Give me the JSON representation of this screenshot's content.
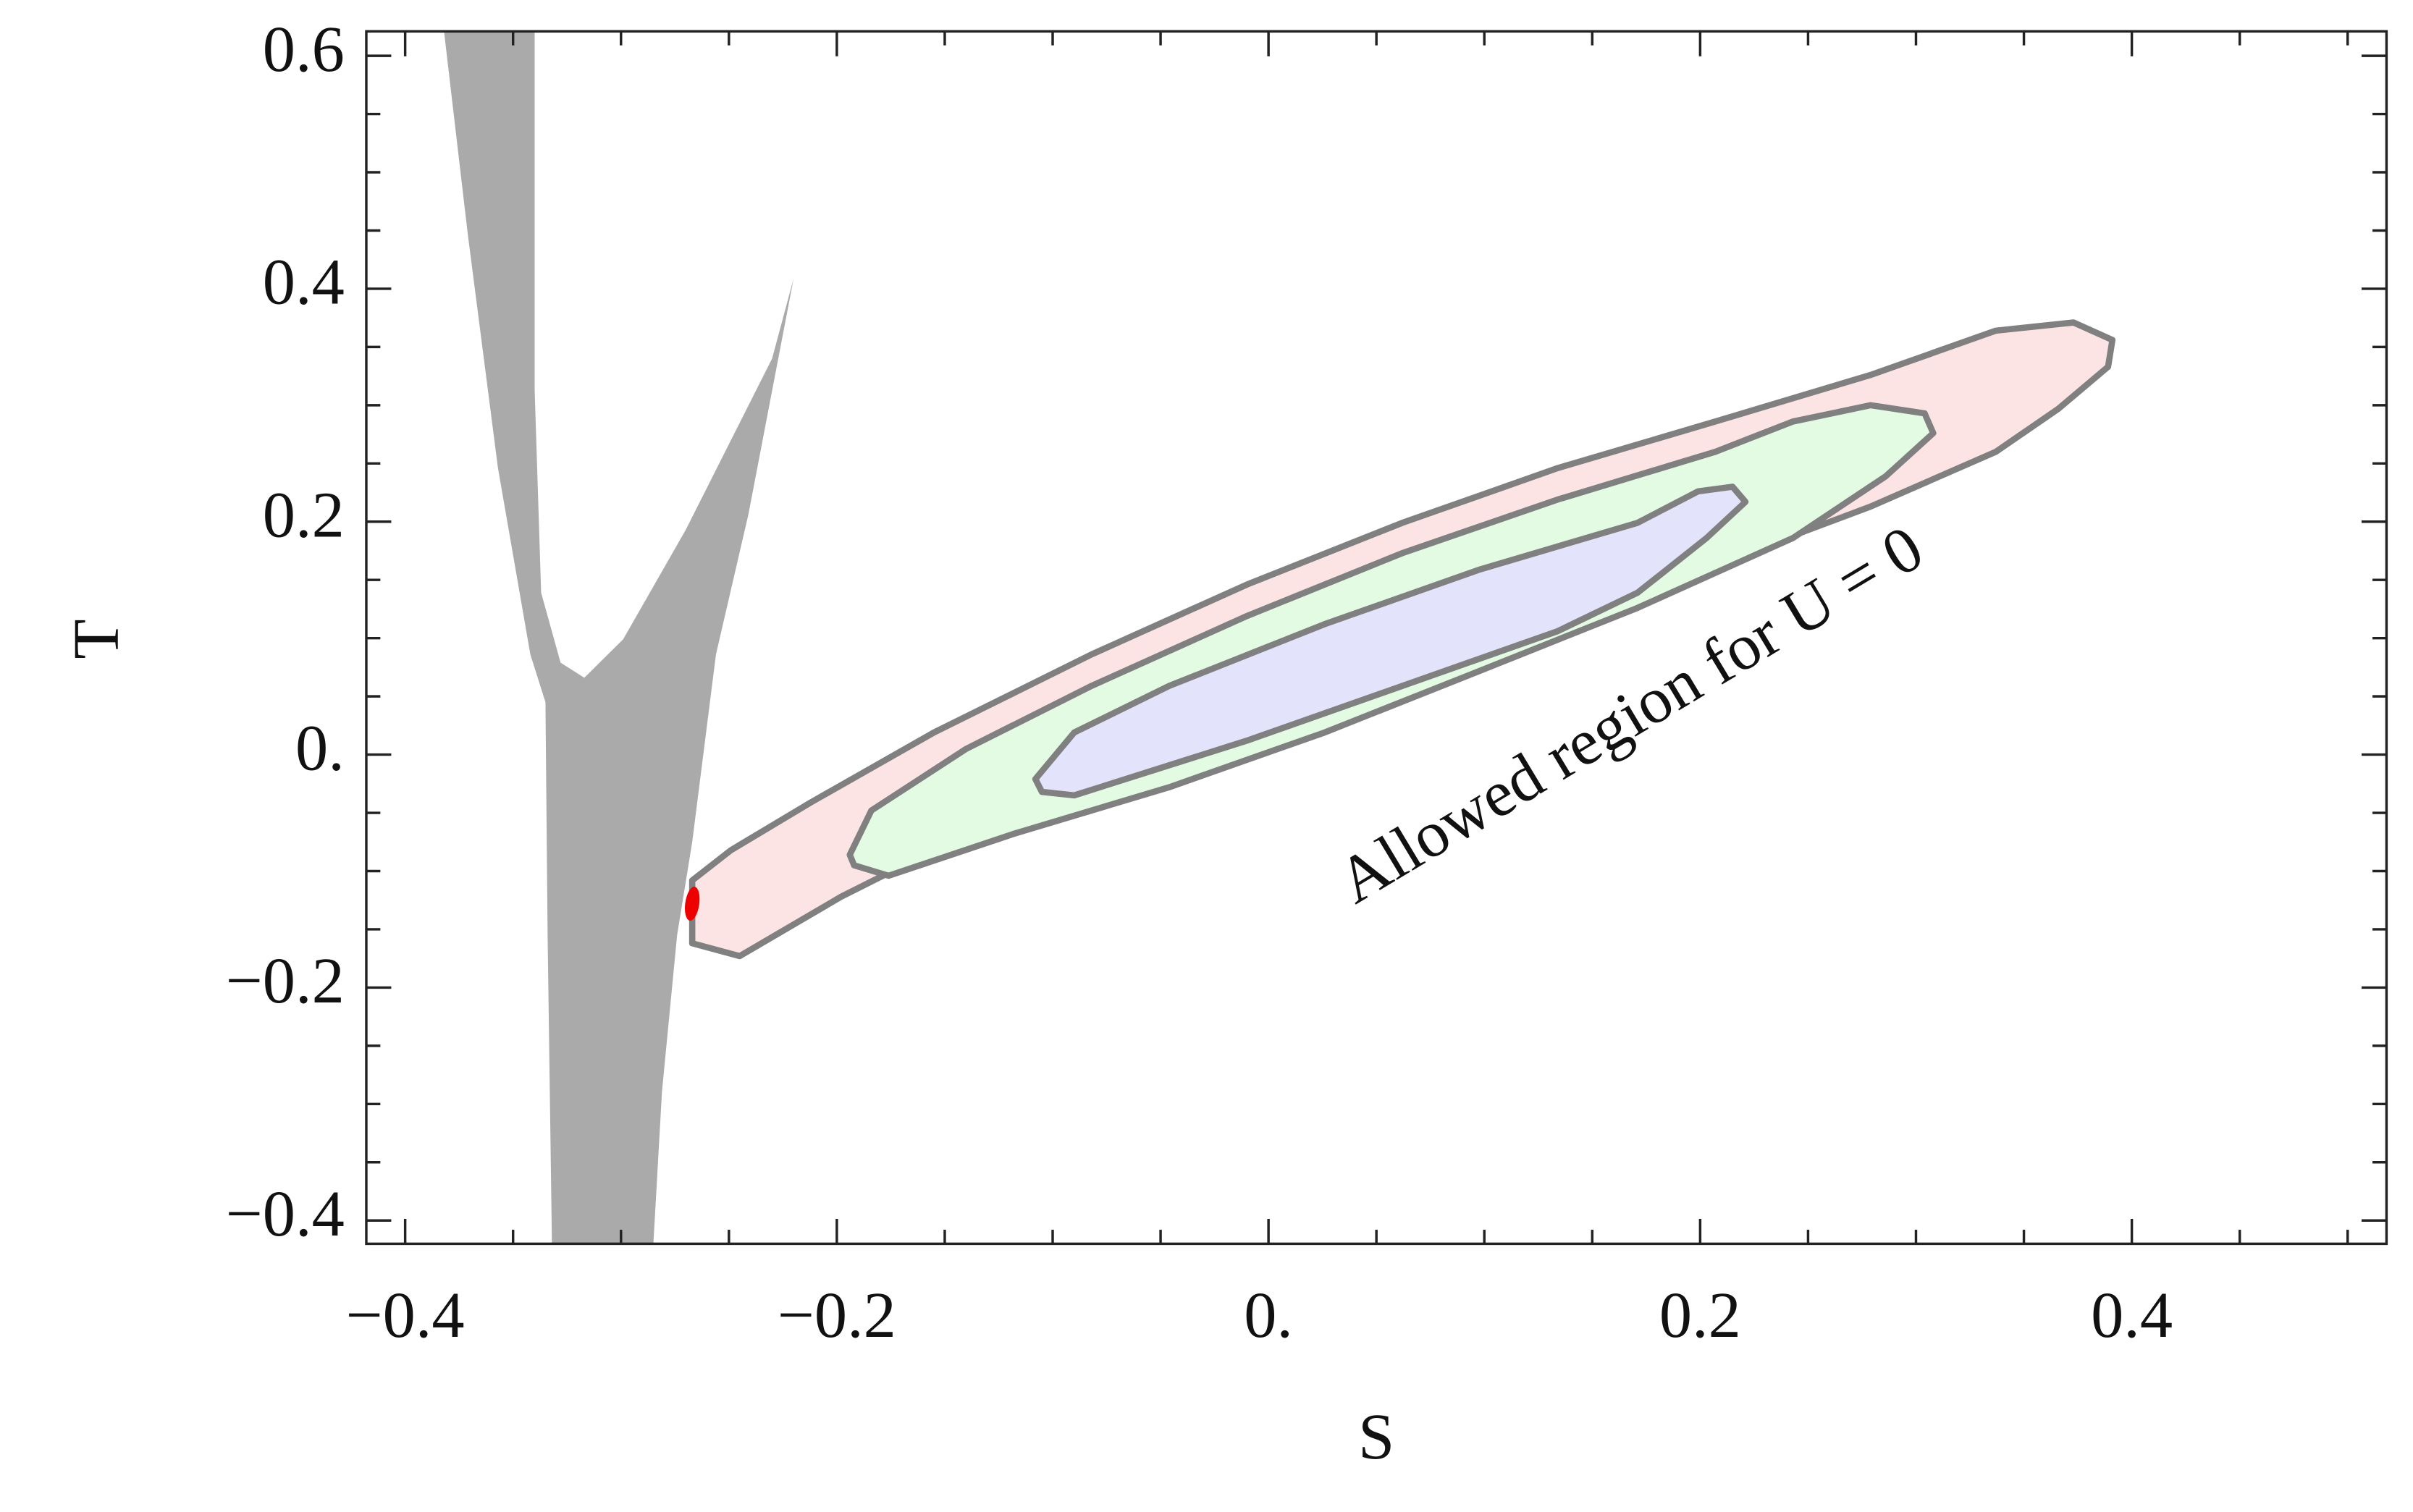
{
  "chart_data": {
    "type": "region",
    "xlabel": "S",
    "ylabel": "T",
    "annotation": "Allowed region for U = 0",
    "xlim": [
      -0.418,
      0.518
    ],
    "ylim": [
      -0.42,
      0.621
    ],
    "xticks": [
      {
        "value": -0.4,
        "label": "−0.4"
      },
      {
        "value": -0.2,
        "label": "−0.2"
      },
      {
        "value": 0,
        "label": "0."
      },
      0.2,
      0.4
    ],
    "yticks": [
      {
        "value": -0.4,
        "label": "−0.4"
      },
      {
        "value": -0.2,
        "label": "−0.2"
      },
      {
        "value": 0,
        "label": "0."
      },
      0.2,
      0.4,
      0.6
    ],
    "xminorticks": [
      -0.35,
      -0.3,
      -0.25,
      -0.15,
      -0.1,
      -0.05,
      0.05,
      0.1,
      0.15,
      0.25,
      0.3,
      0.35,
      0.45,
      0.5
    ],
    "yminorticks": [
      -0.35,
      -0.3,
      -0.25,
      -0.15,
      -0.1,
      -0.05,
      0.05,
      0.1,
      0.15,
      0.25,
      0.3,
      0.35,
      0.45,
      0.5,
      0.55
    ],
    "series": [
      {
        "color": "#aaaaaa",
        "x": [
          -0.382,
          -0.371,
          -0.357,
          -0.342,
          -0.335,
          -0.334,
          -0.332,
          -0.285,
          -0.281,
          -0.274,
          -0.267,
          -0.256,
          -0.241,
          -0.22,
          -0.23,
          -0.27,
          -0.299,
          -0.317,
          -0.328,
          -0.337,
          -0.34,
          -0.34
        ],
        "y": [
          0.621,
          0.447,
          0.246,
          0.086,
          0.045,
          -0.155,
          -0.42,
          -0.42,
          -0.289,
          -0.155,
          -0.075,
          0.086,
          0.206,
          0.409,
          0.34,
          0.193,
          0.099,
          0.066,
          0.079,
          0.139,
          0.313,
          0.621
        ]
      },
      {
        "color": "#fde4e4",
        "edgecolor": "#808080",
        "x": [
          -0.267,
          -0.249,
          -0.212,
          -0.155,
          -0.082,
          -0.01,
          0.062,
          0.134,
          0.207,
          0.279,
          0.337,
          0.373,
          0.391,
          0.389,
          0.366,
          0.337,
          0.279,
          0.207,
          0.134,
          0.062,
          -0.01,
          -0.082,
          -0.155,
          -0.198,
          -0.245,
          -0.267
        ],
        "y": [
          -0.108,
          -0.082,
          -0.041,
          0.019,
          0.086,
          0.146,
          0.199,
          0.246,
          0.286,
          0.326,
          0.364,
          0.371,
          0.356,
          0.333,
          0.297,
          0.26,
          0.213,
          0.163,
          0.112,
          0.059,
          0.008,
          -0.035,
          -0.082,
          -0.122,
          -0.173,
          -0.162
        ]
      },
      {
        "color": "#e3fbe3",
        "edgecolor": "#808080",
        "x": [
          -0.194,
          -0.184,
          -0.14,
          -0.082,
          -0.01,
          0.062,
          0.134,
          0.207,
          0.243,
          0.279,
          0.304,
          0.308,
          0.286,
          0.243,
          0.171,
          0.098,
          0.026,
          -0.046,
          -0.118,
          -0.176,
          -0.192
        ],
        "y": [
          -0.086,
          -0.048,
          0.005,
          0.059,
          0.119,
          0.173,
          0.219,
          0.26,
          0.286,
          0.3,
          0.293,
          0.276,
          0.239,
          0.186,
          0.126,
          0.072,
          0.019,
          -0.028,
          -0.068,
          -0.104,
          -0.095
        ]
      },
      {
        "color": "#e3e4fb",
        "edgecolor": "#808080",
        "x": [
          -0.108,
          -0.09,
          -0.046,
          0.026,
          0.098,
          0.171,
          0.199,
          0.215,
          0.221,
          0.203,
          0.171,
          0.134,
          0.062,
          -0.01,
          -0.09,
          -0.105
        ],
        "y": [
          -0.021,
          0.019,
          0.059,
          0.112,
          0.159,
          0.199,
          0.226,
          0.23,
          0.217,
          0.186,
          0.139,
          0.106,
          0.059,
          0.012,
          -0.035,
          -0.032
        ]
      },
      {
        "color": "#ee0000",
        "x": [
          -0.267
        ],
        "y": [
          -0.128
        ]
      }
    ]
  }
}
